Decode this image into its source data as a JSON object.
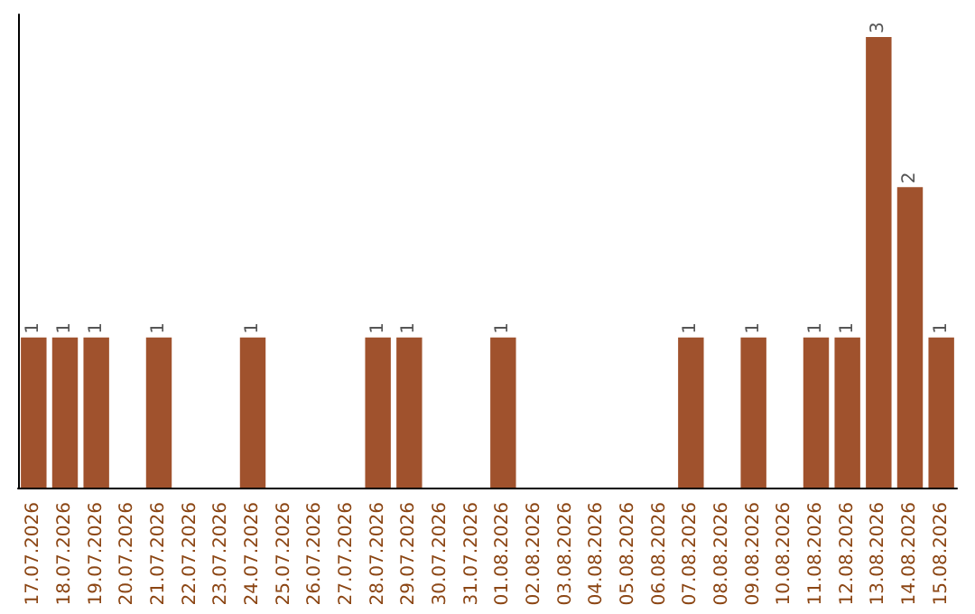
{
  "chart_data": {
    "type": "bar",
    "categories": [
      "17.07.2026",
      "18.07.2026",
      "19.07.2026",
      "20.07.2026",
      "21.07.2026",
      "22.07.2026",
      "23.07.2026",
      "24.07.2026",
      "25.07.2026",
      "26.07.2026",
      "27.07.2026",
      "28.07.2026",
      "29.07.2026",
      "30.07.2026",
      "31.07.2026",
      "01.08.2026",
      "02.08.2026",
      "03.08.2026",
      "04.08.2026",
      "05.08.2026",
      "06.08.2026",
      "07.08.2026",
      "08.08.2026",
      "09.08.2026",
      "10.08.2026",
      "11.08.2026",
      "12.08.2026",
      "13.08.2026",
      "14.08.2026",
      "15.08.2026"
    ],
    "values": [
      1,
      1,
      1,
      0,
      1,
      0,
      0,
      1,
      0,
      0,
      0,
      1,
      1,
      0,
      0,
      1,
      0,
      0,
      0,
      0,
      0,
      1,
      0,
      1,
      0,
      1,
      1,
      3,
      2,
      1
    ],
    "value_labels": [
      "1",
      "1",
      "1",
      null,
      "1",
      null,
      null,
      "1",
      null,
      null,
      null,
      "1",
      "1",
      null,
      null,
      "1",
      null,
      null,
      null,
      null,
      null,
      "1",
      null,
      "1",
      null,
      "1",
      "1",
      "3",
      "2",
      "1"
    ],
    "color": "#a0522d",
    "tick_labels": "x"
  }
}
